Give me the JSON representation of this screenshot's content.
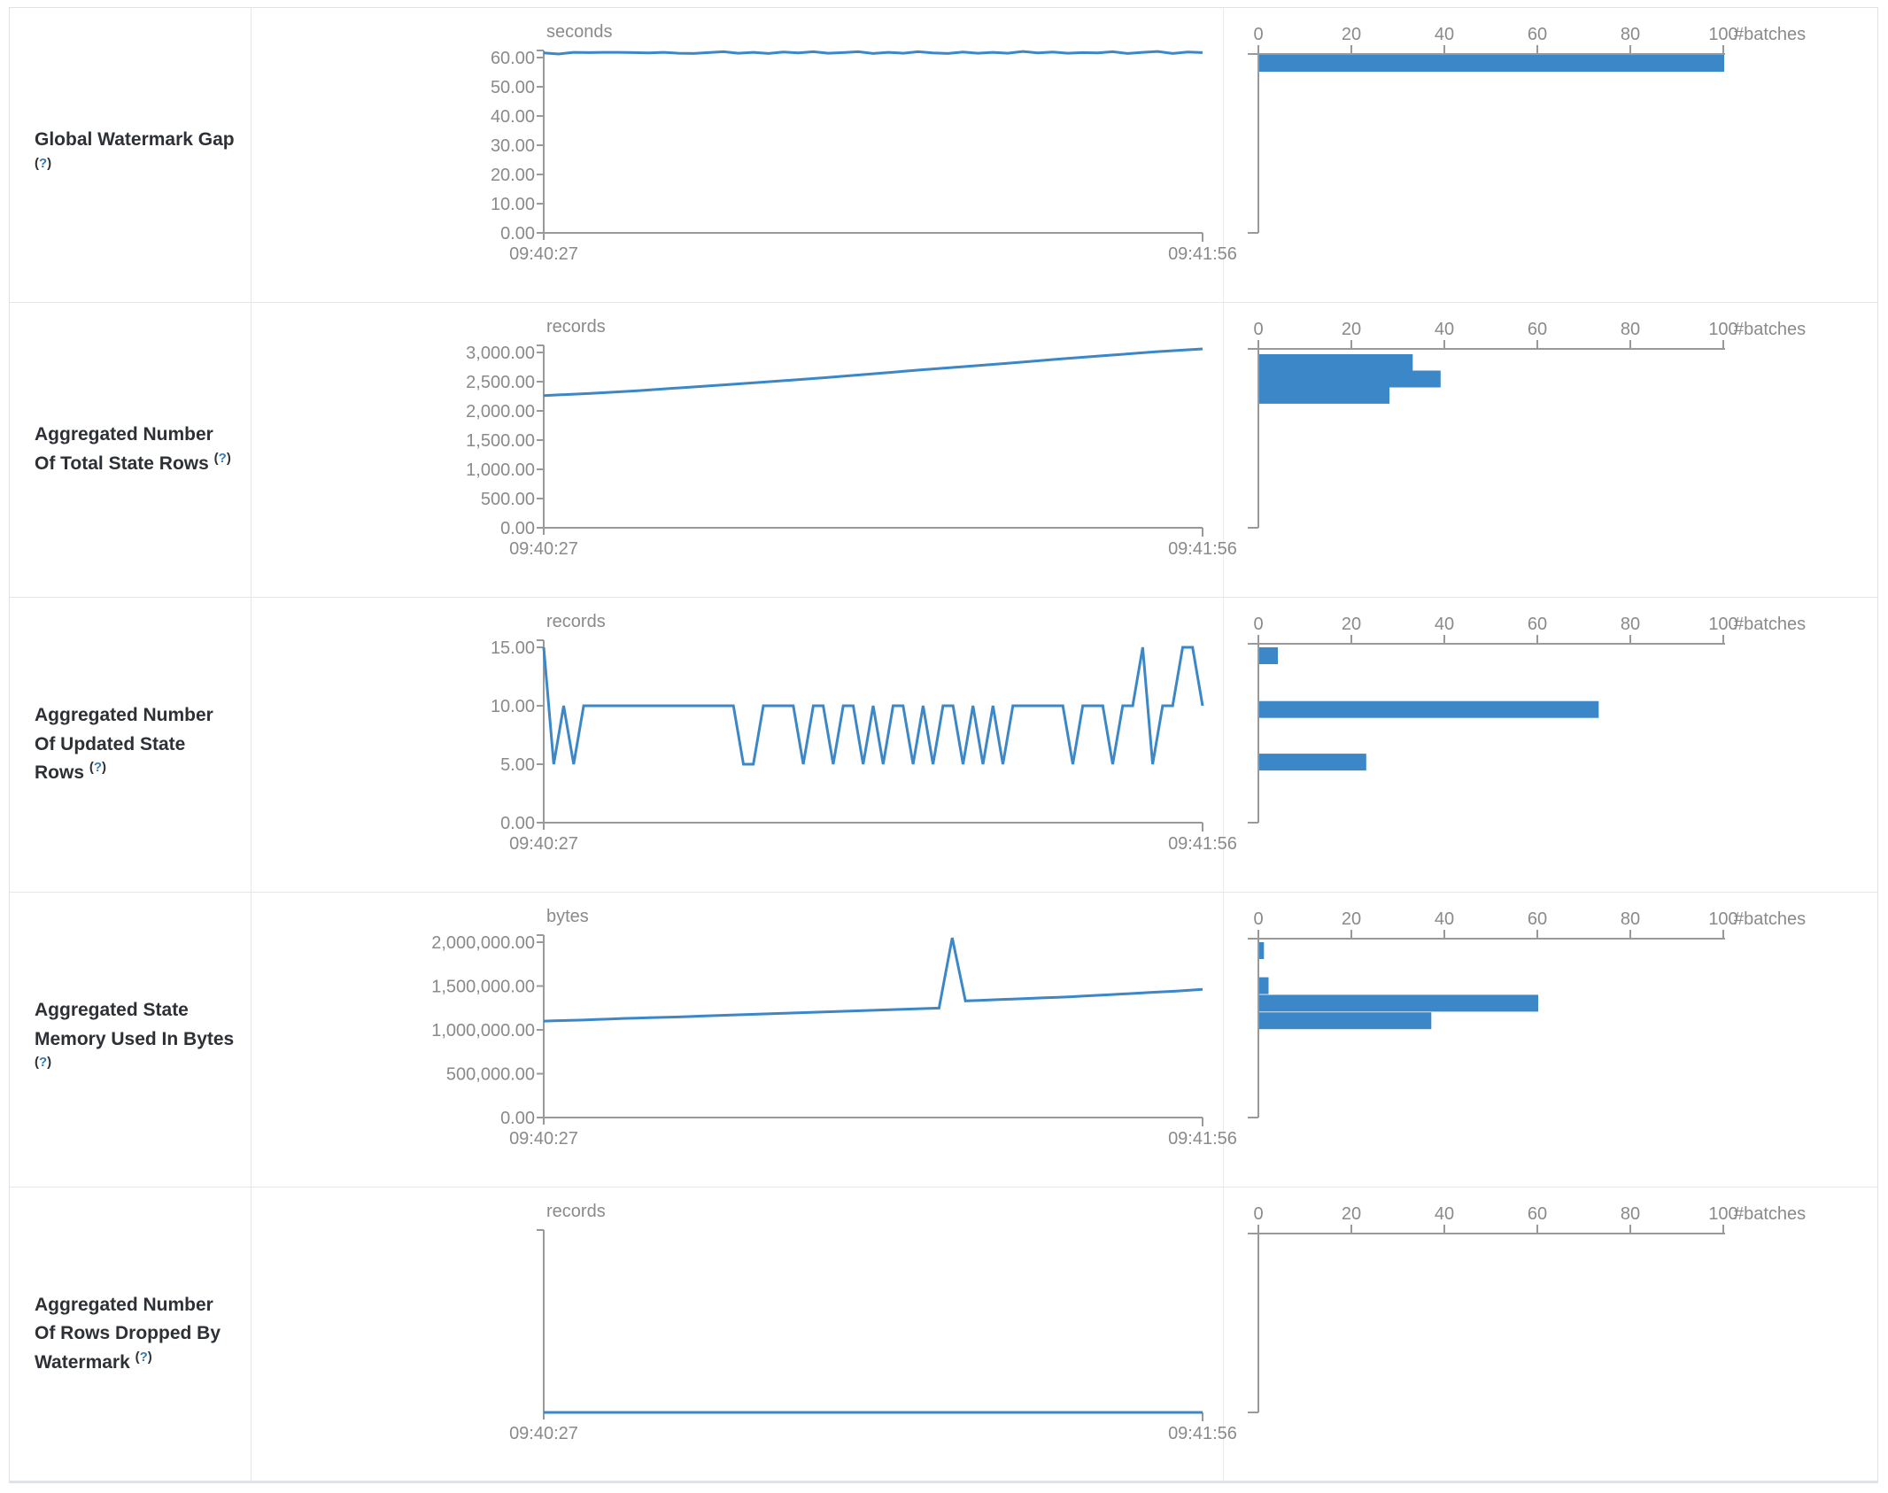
{
  "ui": {
    "paren_open": "(",
    "help_symbol": "?",
    "paren_close": ")"
  },
  "colors": {
    "accent": "#3b87c8",
    "axis_line": "#999999",
    "axis_text": "#8a8a8a",
    "label_text": "#2d3136",
    "help_link": "#3279b7",
    "border": "#e3e6ea"
  },
  "chart_data": [
    {
      "metric": "Global Watermark Gap",
      "unit": "seconds",
      "timeline": {
        "type": "line",
        "x_start": "09:40:27",
        "x_end": "09:41:56",
        "ymax": 60,
        "yticks": [
          {
            "value": 60,
            "label": "60.00"
          },
          {
            "value": 50,
            "label": "50.00"
          },
          {
            "value": 40,
            "label": "40.00"
          },
          {
            "value": 30,
            "label": "30.00"
          },
          {
            "value": 20,
            "label": "20.00"
          },
          {
            "value": 10,
            "label": "10.00"
          },
          {
            "value": 0,
            "label": "0.00"
          }
        ],
        "values": [
          61.6,
          61.2,
          61.8,
          61.7,
          61.8,
          61.8,
          61.7,
          61.6,
          61.8,
          61.5,
          61.4,
          61.7,
          62.0,
          61.5,
          61.8,
          61.4,
          61.9,
          61.6,
          62.0,
          61.5,
          61.7,
          62.0,
          61.4,
          61.8,
          61.5,
          62.0,
          61.6,
          61.4,
          61.9,
          61.5,
          61.8,
          61.5,
          62.1,
          61.6,
          61.9,
          61.5,
          61.7,
          61.6,
          62.0,
          61.4,
          61.8,
          62.1,
          61.4,
          61.9,
          61.7
        ]
      },
      "histogram": {
        "type": "bar",
        "xlabel": "#batches",
        "xticks": [
          0,
          20,
          40,
          60,
          80,
          100
        ],
        "xmax": 100,
        "bars": [
          {
            "bucket_value": 61,
            "count": 100
          }
        ]
      }
    },
    {
      "metric": "Aggregated Number Of Total State Rows",
      "unit": "records",
      "timeline": {
        "type": "line",
        "x_start": "09:40:27",
        "x_end": "09:41:56",
        "ymax": 3000,
        "yticks": [
          {
            "value": 3000,
            "label": "3,000.00"
          },
          {
            "value": 2500,
            "label": "2,500.00"
          },
          {
            "value": 2000,
            "label": "2,000.00"
          },
          {
            "value": 1500,
            "label": "1,500.00"
          },
          {
            "value": 1000,
            "label": "1,000.00"
          },
          {
            "value": 500,
            "label": "500.00"
          },
          {
            "value": 0,
            "label": "0.00"
          }
        ],
        "values": [
          2262,
          2300,
          2345,
          2400,
          2455,
          2510,
          2570,
          2635,
          2700,
          2760,
          2825,
          2890,
          2950,
          3010,
          3060
        ]
      },
      "histogram": {
        "type": "bar",
        "xlabel": "#batches",
        "xticks": [
          0,
          20,
          40,
          60,
          80,
          100
        ],
        "xmax": 100,
        "bars": [
          {
            "bucket_value": 2970,
            "count": 33
          },
          {
            "bucket_value": 2690,
            "count": 39
          },
          {
            "bucket_value": 2410,
            "count": 28
          }
        ]
      }
    },
    {
      "metric": "Aggregated Number Of Updated State Rows",
      "unit": "records",
      "timeline": {
        "type": "line",
        "x_start": "09:40:27",
        "x_end": "09:41:56",
        "ymax": 15,
        "yticks": [
          {
            "value": 15,
            "label": "15.00"
          },
          {
            "value": 10,
            "label": "10.00"
          },
          {
            "value": 5,
            "label": "5.00"
          },
          {
            "value": 0,
            "label": "0.00"
          }
        ],
        "values": [
          15,
          5,
          10,
          5,
          10,
          10,
          10,
          10,
          10,
          10,
          10,
          10,
          10,
          10,
          10,
          10,
          10,
          10,
          10,
          10,
          5,
          5,
          10,
          10,
          10,
          10,
          5,
          10,
          10,
          5,
          10,
          10,
          5,
          10,
          5,
          10,
          10,
          5,
          10,
          5,
          10,
          10,
          5,
          10,
          5,
          10,
          5,
          10,
          10,
          10,
          10,
          10,
          10,
          5,
          10,
          10,
          10,
          5,
          10,
          10,
          15,
          5,
          10,
          10,
          15,
          15,
          10
        ]
      },
      "histogram": {
        "type": "bar",
        "xlabel": "#batches",
        "xticks": [
          0,
          20,
          40,
          60,
          80,
          100
        ],
        "xmax": 100,
        "bars": [
          {
            "bucket_value": 15,
            "count": 4
          },
          {
            "bucket_value": 10.4,
            "count": 73
          },
          {
            "bucket_value": 5.9,
            "count": 23
          }
        ]
      }
    },
    {
      "metric": "Aggregated State Memory Used In Bytes",
      "unit": "bytes",
      "timeline": {
        "type": "line",
        "x_start": "09:40:27",
        "x_end": "09:41:56",
        "ymax": 2000000,
        "yticks": [
          {
            "value": 2000000,
            "label": "2,000,000.00"
          },
          {
            "value": 1500000,
            "label": "1,500,000.00"
          },
          {
            "value": 1000000,
            "label": "1,000,000.00"
          },
          {
            "value": 500000,
            "label": "500,000.00"
          },
          {
            "value": 0,
            "label": "0.00"
          }
        ],
        "values": [
          1100000,
          1105000,
          1108000,
          1112000,
          1118000,
          1124000,
          1130000,
          1134000,
          1138000,
          1142000,
          1146000,
          1152000,
          1158000,
          1163000,
          1168000,
          1173000,
          1178000,
          1183000,
          1188000,
          1193000,
          1198000,
          1203000,
          1208000,
          1213000,
          1218000,
          1223000,
          1228000,
          1233000,
          1238000,
          1243000,
          1248000,
          2050000,
          1330000,
          1336000,
          1342000,
          1348000,
          1354000,
          1360000,
          1366000,
          1372000,
          1378000,
          1386000,
          1394000,
          1402000,
          1410000,
          1418000,
          1426000,
          1434000,
          1442000,
          1452000,
          1462000
        ]
      },
      "histogram": {
        "type": "bar",
        "xlabel": "#batches",
        "xticks": [
          0,
          20,
          40,
          60,
          80,
          100
        ],
        "xmax": 100,
        "bars": [
          {
            "bucket_value": 2000000,
            "count": 1
          },
          {
            "bucket_value": 1600000,
            "count": 2
          },
          {
            "bucket_value": 1400000,
            "count": 60
          },
          {
            "bucket_value": 1200000,
            "count": 37
          }
        ]
      }
    },
    {
      "metric": "Aggregated Number Of Rows Dropped By Watermark",
      "unit": "records",
      "timeline": {
        "type": "line",
        "x_start": "09:40:27",
        "x_end": "09:41:56",
        "ymax": 1,
        "yticks": [],
        "values": [
          0,
          0,
          0,
          0,
          0,
          0,
          0,
          0,
          0,
          0
        ]
      },
      "histogram": {
        "type": "bar",
        "xlabel": "#batches",
        "xticks": [
          0,
          20,
          40,
          60,
          80,
          100
        ],
        "xmax": 100,
        "bars": []
      }
    }
  ]
}
